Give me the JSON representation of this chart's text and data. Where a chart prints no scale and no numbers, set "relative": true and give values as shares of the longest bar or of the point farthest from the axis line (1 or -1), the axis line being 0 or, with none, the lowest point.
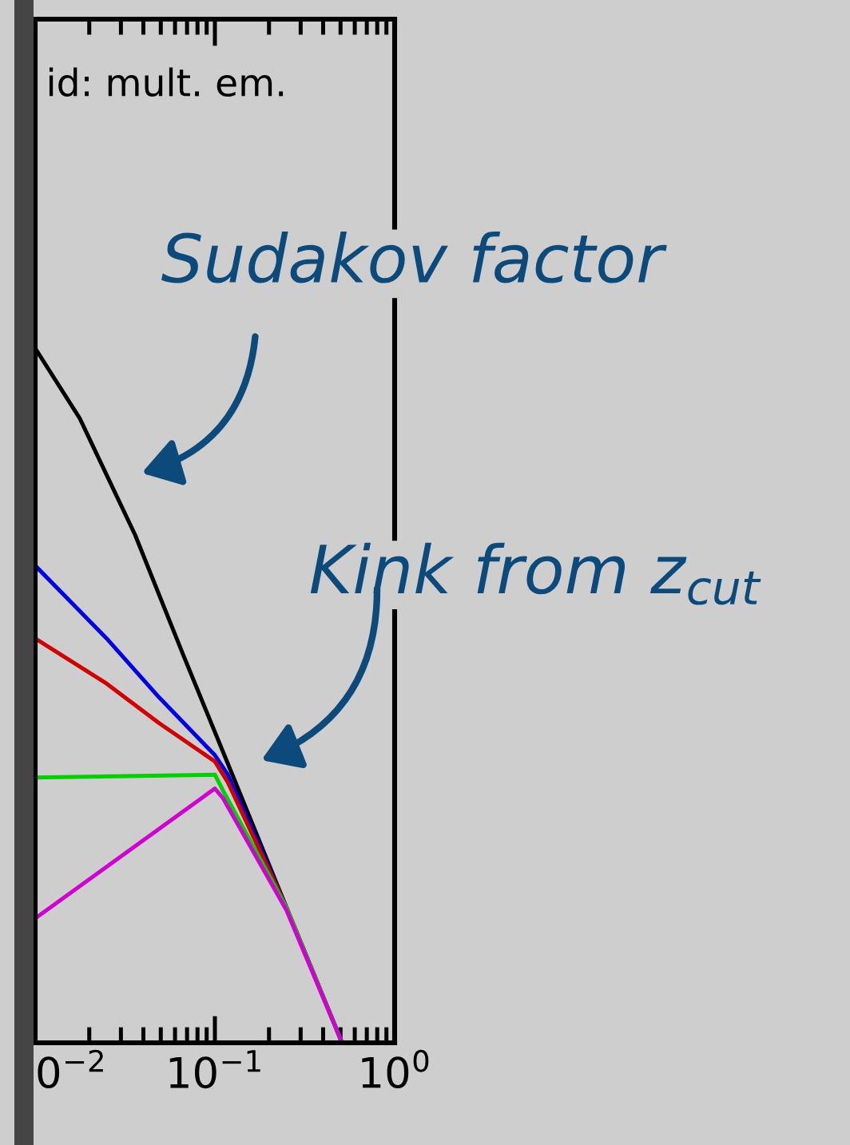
{
  "chart_data": {
    "type": "line",
    "relative": true,
    "log": "x",
    "xlim": [
      0.01,
      1
    ],
    "xticks": [
      {
        "value": 0.01,
        "label": "0$^{−2}$"
      },
      {
        "value": 0.1,
        "label": "10$^{−1}$"
      },
      {
        "value": 1,
        "label": "10$^{0}$"
      }
    ],
    "grid": false,
    "legend": false,
    "marker": "none",
    "line_style": "solid",
    "series": [
      {
        "color": "#000000",
        "x": [
          0.01,
          0.0177,
          0.036,
          0.0665,
          0.118,
          0.25,
          0.51
        ],
        "values": [
          1.0,
          0.899,
          0.731,
          0.559,
          0.402,
          0.195,
          0
        ]
      },
      {
        "color": "#0000e0",
        "x": [
          0.01,
          0.025,
          0.049,
          0.1,
          0.118,
          0.25,
          0.51
        ],
        "values": [
          0.687,
          0.582,
          0.497,
          0.414,
          0.386,
          0.195,
          0
        ]
      },
      {
        "color": "#d00000",
        "x": [
          0.01,
          0.025,
          0.049,
          0.1,
          0.118,
          0.25,
          0.51
        ],
        "values": [
          0.582,
          0.517,
          0.46,
          0.405,
          0.375,
          0.195,
          0
        ]
      },
      {
        "color": "#00d000",
        "x": [
          0.01,
          0.1,
          0.111,
          0.25,
          0.51
        ],
        "values": [
          0.382,
          0.386,
          0.363,
          0.195,
          0
        ]
      },
      {
        "color": "#d000d0",
        "x": [
          0.01,
          0.1,
          0.111,
          0.25,
          0.51
        ],
        "values": [
          0.179,
          0.366,
          0.352,
          0.191,
          0
        ]
      }
    ],
    "annotations": [
      "id: mult. em.",
      "Sudakov factor",
      "Kink from z$_{cut}$"
    ]
  }
}
